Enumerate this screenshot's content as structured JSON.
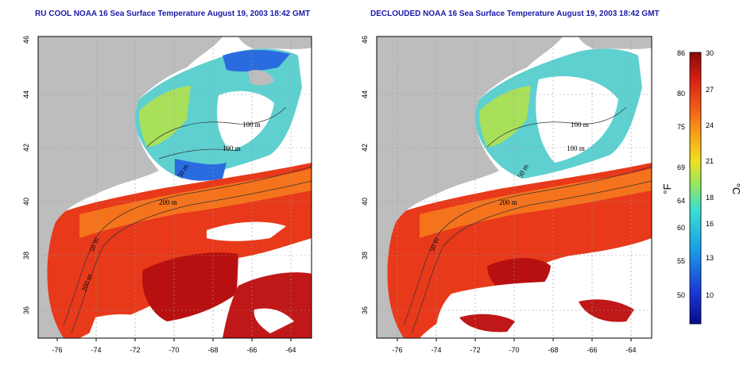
{
  "titles": {
    "left": "RU COOL NOAA 16 Sea Surface Temperature August 19, 2003 18:42 GMT",
    "right": "DECLOUDED NOAA 16 Sea Surface Temperature August 19, 2003 18:42 GMT"
  },
  "x_ticks": [
    "-76",
    "-74",
    "-72",
    "-70",
    "-68",
    "-66",
    "-64"
  ],
  "y_ticks": [
    "36",
    "38",
    "40",
    "42",
    "44",
    "46"
  ],
  "contour_labels": {
    "left": [
      "100 m",
      "100 m",
      "50 m",
      "200 m",
      "50 m",
      "200 m"
    ],
    "right": [
      "100 m",
      "100 m",
      "50 m",
      "200 m",
      "50 m"
    ]
  },
  "colorbar": {
    "f_ticks": [
      "86",
      "80",
      "75",
      "69",
      "64",
      "60",
      "55",
      "50"
    ],
    "c_ticks": [
      "30",
      "27",
      "24",
      "21",
      "18",
      "16",
      "13",
      "10"
    ],
    "f_unit": "°F",
    "c_unit": "°C"
  },
  "colors": {
    "land": "#bdbdbd",
    "water_warm": "#e8391a",
    "water_hot": "#b81010",
    "water_cold": "#2a6be0",
    "title": "#1a1aa8"
  }
}
